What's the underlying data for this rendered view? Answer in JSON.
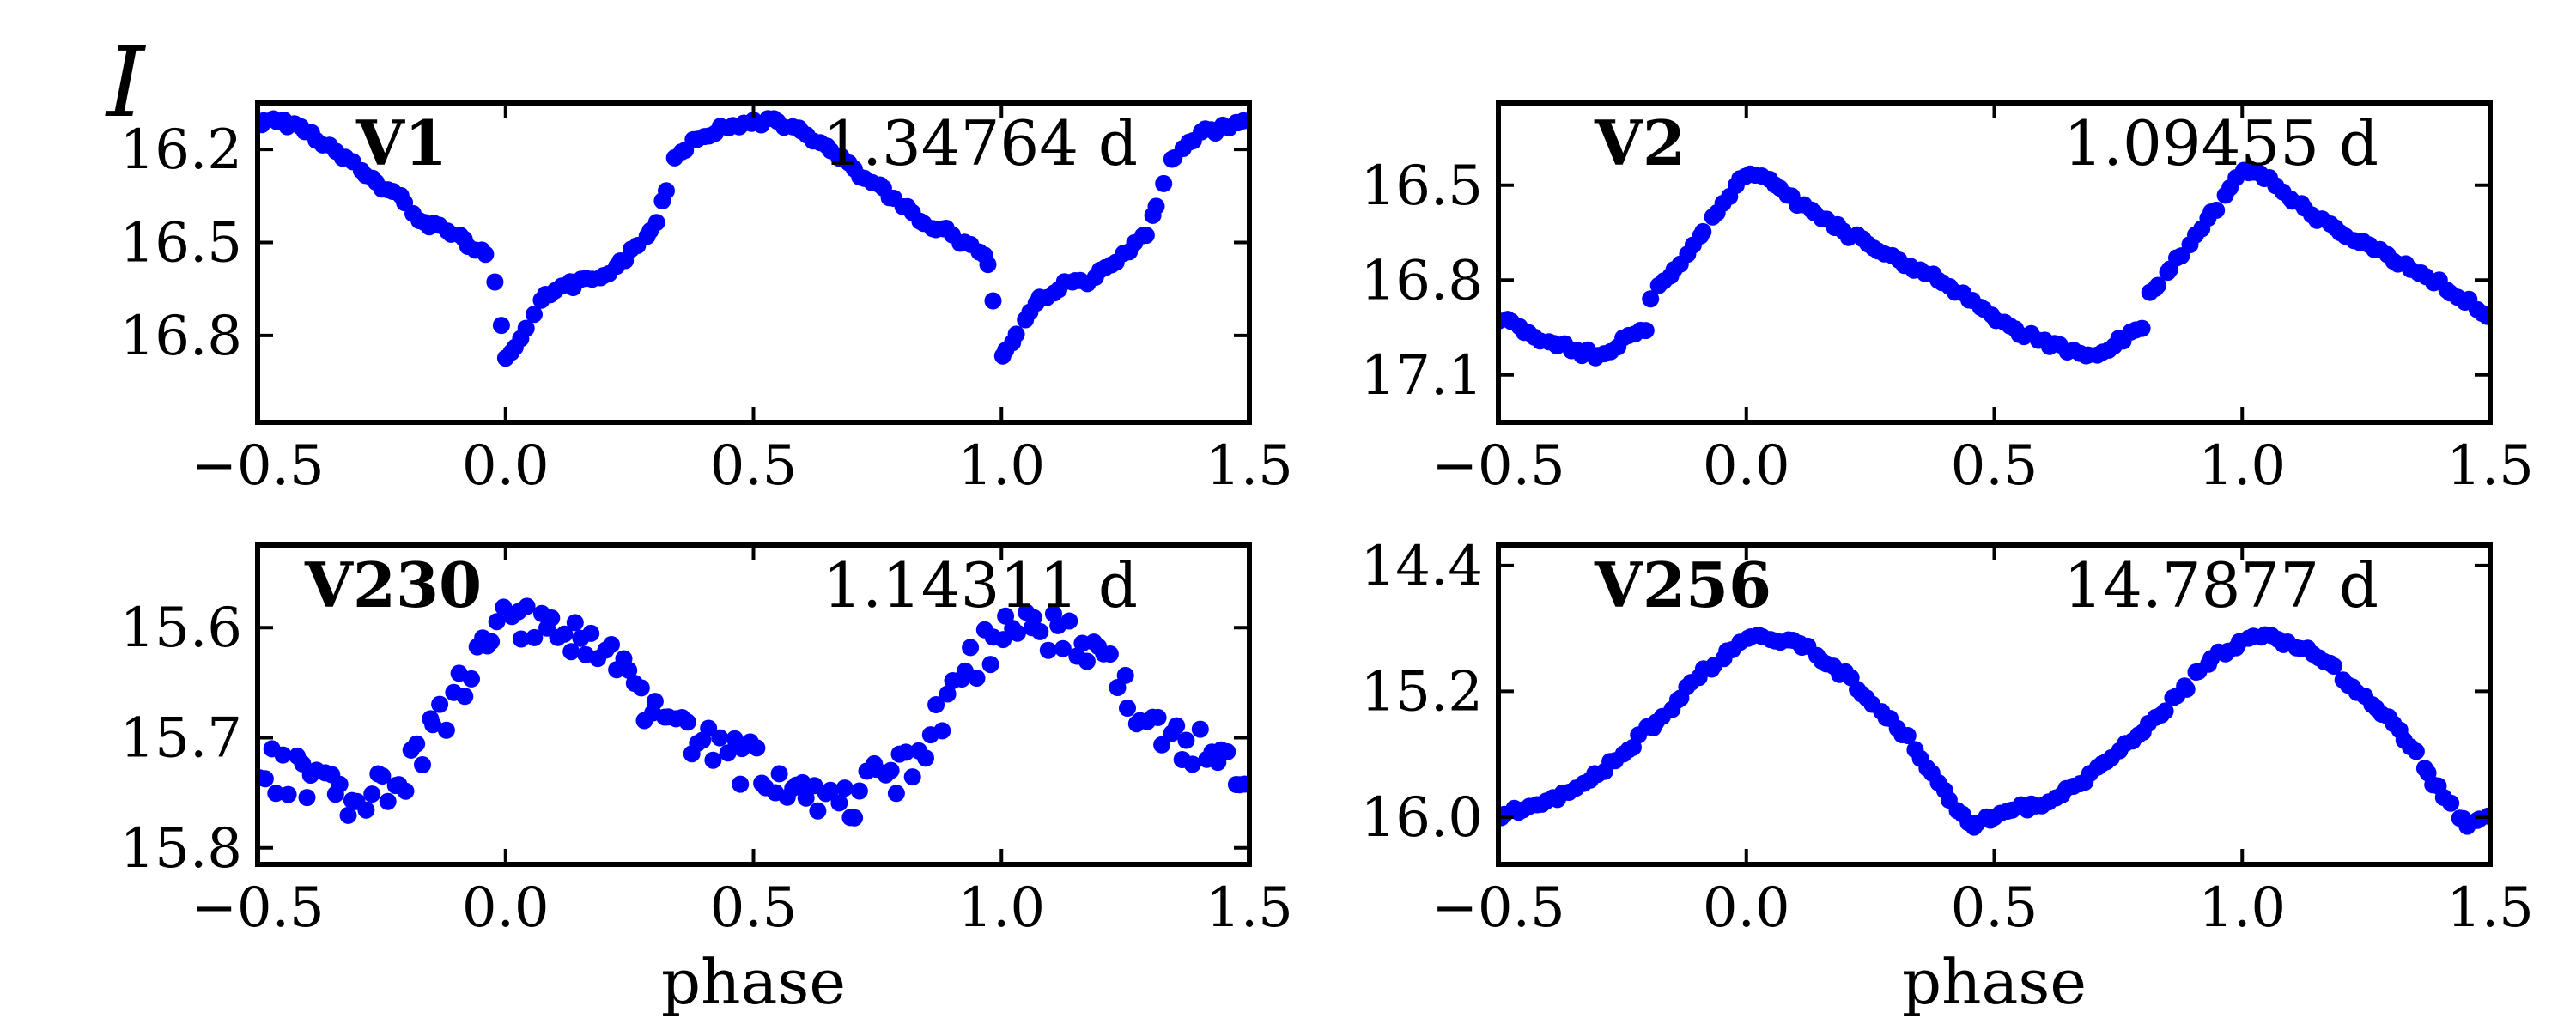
{
  "figure": {
    "band_label": "I"
  },
  "chart_data": [
    {
      "type": "scatter",
      "star": "V1",
      "period_label": "1.34764 d",
      "xlabel": "",
      "ylabel": "I",
      "xlim": [
        -0.5,
        1.5
      ],
      "ylim": [
        17.08,
        16.05
      ],
      "y_inverted": true,
      "xticks": [
        -0.5,
        0.0,
        0.5,
        1.0,
        1.5
      ],
      "xtick_labels": [
        "−0.5",
        "0.0",
        "0.5",
        "1.0",
        "1.5"
      ],
      "yticks": [
        16.2,
        16.5,
        16.8
      ],
      "ytick_labels": [
        "16.2",
        "16.5",
        "16.8"
      ],
      "marker_color": "#0000ff",
      "phase_curve": [
        [
          0.0,
          16.87
        ],
        [
          0.02,
          16.83
        ],
        [
          0.05,
          16.74
        ],
        [
          0.08,
          16.68
        ],
        [
          0.12,
          16.64
        ],
        [
          0.18,
          16.62
        ],
        [
          0.22,
          16.58
        ],
        [
          0.27,
          16.51
        ],
        [
          0.3,
          16.45
        ],
        [
          0.32,
          16.35
        ],
        [
          0.34,
          16.23
        ],
        [
          0.37,
          16.18
        ],
        [
          0.4,
          16.15
        ],
        [
          0.45,
          16.13
        ],
        [
          0.5,
          16.11
        ],
        [
          0.55,
          16.11
        ],
        [
          0.6,
          16.14
        ],
        [
          0.65,
          16.2
        ],
        [
          0.7,
          16.26
        ],
        [
          0.75,
          16.32
        ],
        [
          0.8,
          16.37
        ],
        [
          0.83,
          16.43
        ],
        [
          0.87,
          16.45
        ],
        [
          0.9,
          16.47
        ],
        [
          0.93,
          16.51
        ],
        [
          0.97,
          16.54
        ],
        [
          1.0,
          16.87
        ]
      ],
      "scatter": 0.012
    },
    {
      "type": "scatter",
      "star": "V2",
      "period_label": "1.09455 d",
      "xlabel": "",
      "ylabel": "",
      "xlim": [
        -0.5,
        1.5
      ],
      "ylim": [
        17.25,
        16.24
      ],
      "y_inverted": true,
      "xticks": [
        -0.5,
        0.0,
        0.5,
        1.0,
        1.5
      ],
      "xtick_labels": [
        "−0.5",
        "0.0",
        "0.5",
        "1.0",
        "1.5"
      ],
      "yticks": [
        16.5,
        16.8,
        17.1
      ],
      "ytick_labels": [
        "16.5",
        "16.8",
        "17.1"
      ],
      "marker_color": "#0000ff",
      "phase_curve": [
        [
          0.0,
          16.46
        ],
        [
          0.05,
          16.48
        ],
        [
          0.1,
          16.55
        ],
        [
          0.2,
          16.65
        ],
        [
          0.3,
          16.73
        ],
        [
          0.4,
          16.81
        ],
        [
          0.5,
          16.92
        ],
        [
          0.6,
          17.0
        ],
        [
          0.7,
          17.04
        ],
        [
          0.8,
          16.95
        ],
        [
          0.8001,
          16.87
        ],
        [
          0.85,
          16.78
        ],
        [
          0.9,
          16.67
        ],
        [
          0.95,
          16.57
        ],
        [
          1.0,
          16.46
        ]
      ],
      "scatter": 0.012
    },
    {
      "type": "scatter",
      "star": "V230",
      "period_label": "1.14311 d",
      "xlabel": "phase",
      "ylabel": "",
      "xlim": [
        -0.5,
        1.5
      ],
      "ylim": [
        15.815,
        15.525
      ],
      "y_inverted": true,
      "xticks": [
        -0.5,
        0.0,
        0.5,
        1.0,
        1.5
      ],
      "xtick_labels": [
        "−0.5",
        "0.0",
        "0.5",
        "1.0",
        "1.5"
      ],
      "yticks": [
        15.6,
        15.7,
        15.8
      ],
      "ytick_labels": [
        "15.6",
        "15.7",
        "15.8"
      ],
      "marker_color": "#0000ff",
      "phase_curve": [
        [
          0.0,
          15.6
        ],
        [
          0.05,
          15.59
        ],
        [
          0.1,
          15.605
        ],
        [
          0.2,
          15.63
        ],
        [
          0.3,
          15.68
        ],
        [
          0.4,
          15.71
        ],
        [
          0.5,
          15.725
        ],
        [
          0.6,
          15.74
        ],
        [
          0.7,
          15.755
        ],
        [
          0.8,
          15.73
        ],
        [
          0.9,
          15.66
        ],
        [
          1.0,
          15.6
        ]
      ],
      "scatter": 0.022
    },
    {
      "type": "scatter",
      "star": "V256",
      "period_label": "14.7877 d",
      "xlabel": "phase",
      "ylabel": "",
      "xlim": [
        -0.5,
        1.5
      ],
      "ylim": [
        16.3,
        14.27
      ],
      "y_inverted": true,
      "xticks": [
        -0.5,
        0.0,
        0.5,
        1.0,
        1.5
      ],
      "xtick_labels": [
        "−0.5",
        "0.0",
        "0.5",
        "1.0",
        "1.5"
      ],
      "yticks": [
        14.4,
        15.2,
        16.0
      ],
      "ytick_labels": [
        "14.4",
        "15.2",
        "16.0"
      ],
      "marker_color": "#0000ff",
      "phase_curve": [
        [
          0.0,
          14.88
        ],
        [
          0.05,
          14.85
        ],
        [
          0.1,
          14.9
        ],
        [
          0.15,
          14.98
        ],
        [
          0.2,
          15.1
        ],
        [
          0.25,
          15.25
        ],
        [
          0.3,
          15.4
        ],
        [
          0.35,
          15.6
        ],
        [
          0.4,
          15.85
        ],
        [
          0.45,
          16.05
        ],
        [
          0.5,
          16.0
        ],
        [
          0.55,
          15.95
        ],
        [
          0.6,
          15.9
        ],
        [
          0.65,
          15.82
        ],
        [
          0.7,
          15.72
        ],
        [
          0.75,
          15.6
        ],
        [
          0.8,
          15.45
        ],
        [
          0.85,
          15.3
        ],
        [
          0.9,
          15.12
        ],
        [
          0.95,
          14.98
        ],
        [
          1.0,
          14.88
        ]
      ],
      "scatter": 0.025
    }
  ]
}
